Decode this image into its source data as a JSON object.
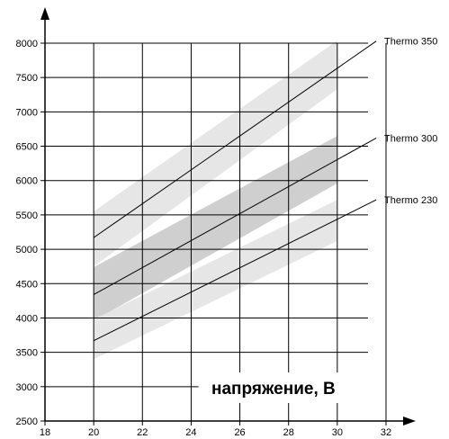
{
  "chart_data": {
    "type": "line",
    "title": "",
    "xlabel": "напряжение, В",
    "ylabel": "",
    "xlim": [
      18,
      32
    ],
    "ylim": [
      2500,
      8000
    ],
    "x_ticks": [
      18,
      20,
      22,
      24,
      26,
      28,
      30,
      32
    ],
    "x_tick_labels": [
      "18",
      "20",
      "22",
      "24",
      "26",
      "28",
      "30",
      "32"
    ],
    "y_ticks": [
      2500,
      3000,
      3500,
      4000,
      4500,
      5000,
      5500,
      6000,
      6500,
      7000,
      7500,
      8000
    ],
    "y_tick_labels": [
      "2500",
      "3000",
      "3500",
      "4000",
      "4500",
      "5000",
      "5500",
      "6000",
      "6500",
      "7000",
      "7500",
      "8000"
    ],
    "grid": true,
    "series": [
      {
        "name": "Thermo 350",
        "x": [
          20,
          31.6
        ],
        "y": [
          5170,
          8030
        ],
        "band": {
          "x": [
            20,
            30
          ],
          "lower": [
            4750,
            7330
          ],
          "upper": [
            5550,
            8040
          ],
          "color": "#e6e6e6"
        }
      },
      {
        "name": "Thermo 300",
        "x": [
          20,
          31.6
        ],
        "y": [
          4340,
          6620
        ],
        "band": {
          "x": [
            20,
            30
          ],
          "lower": [
            3960,
            5960
          ],
          "upper": [
            4740,
            6650
          ],
          "color": "#cfcfcf"
        }
      },
      {
        "name": "Thermo 230",
        "x": [
          20,
          31.6
        ],
        "y": [
          3670,
          5720
        ],
        "band": {
          "x": [
            20,
            30
          ],
          "lower": [
            3400,
            5120
          ],
          "upper": [
            3980,
            5720
          ],
          "color": "#e6e6e6"
        }
      }
    ],
    "series_line_color": "#000000",
    "grid_color": "#000000"
  }
}
